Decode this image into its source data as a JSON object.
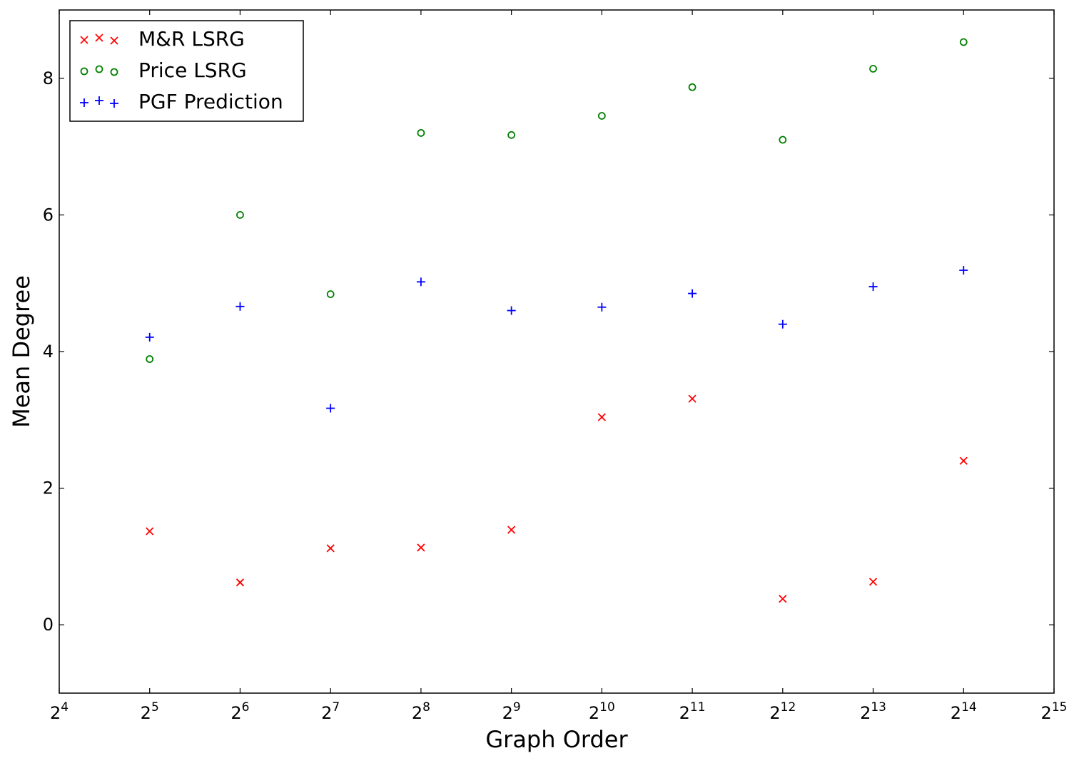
{
  "chart_data": {
    "type": "scatter",
    "xlabel": "Graph Order",
    "ylabel": "Mean Degree",
    "x_scale": "log2",
    "xlim": [
      16,
      32768
    ],
    "ylim": [
      -1,
      9
    ],
    "x_ticks": [
      {
        "base": "2",
        "exp": "4"
      },
      {
        "base": "2",
        "exp": "5"
      },
      {
        "base": "2",
        "exp": "6"
      },
      {
        "base": "2",
        "exp": "7"
      },
      {
        "base": "2",
        "exp": "8"
      },
      {
        "base": "2",
        "exp": "9"
      },
      {
        "base": "2",
        "exp": "10"
      },
      {
        "base": "2",
        "exp": "11"
      },
      {
        "base": "2",
        "exp": "12"
      },
      {
        "base": "2",
        "exp": "13"
      },
      {
        "base": "2",
        "exp": "14"
      },
      {
        "base": "2",
        "exp": "15"
      }
    ],
    "y_ticks": [
      "0",
      "2",
      "4",
      "6",
      "8"
    ],
    "legend_position": "top-left",
    "grid": false,
    "x": [
      32,
      64,
      128,
      256,
      512,
      1024,
      2048,
      4096,
      8192,
      16384
    ],
    "series": [
      {
        "name": "M&R LSRG",
        "marker": "x",
        "color": "#ff0000",
        "values": [
          1.37,
          0.62,
          1.12,
          1.13,
          1.39,
          3.04,
          3.31,
          0.38,
          0.63,
          2.4
        ]
      },
      {
        "name": "Price LSRG",
        "marker": "o",
        "color": "#008000",
        "values": [
          3.89,
          6.0,
          4.84,
          7.2,
          7.17,
          7.45,
          7.87,
          7.1,
          8.14,
          8.53
        ]
      },
      {
        "name": "PGF Prediction",
        "marker": "+",
        "color": "#0000ff",
        "values": [
          4.21,
          4.66,
          3.17,
          5.02,
          4.6,
          4.65,
          4.85,
          4.4,
          4.95,
          5.19
        ]
      }
    ]
  }
}
